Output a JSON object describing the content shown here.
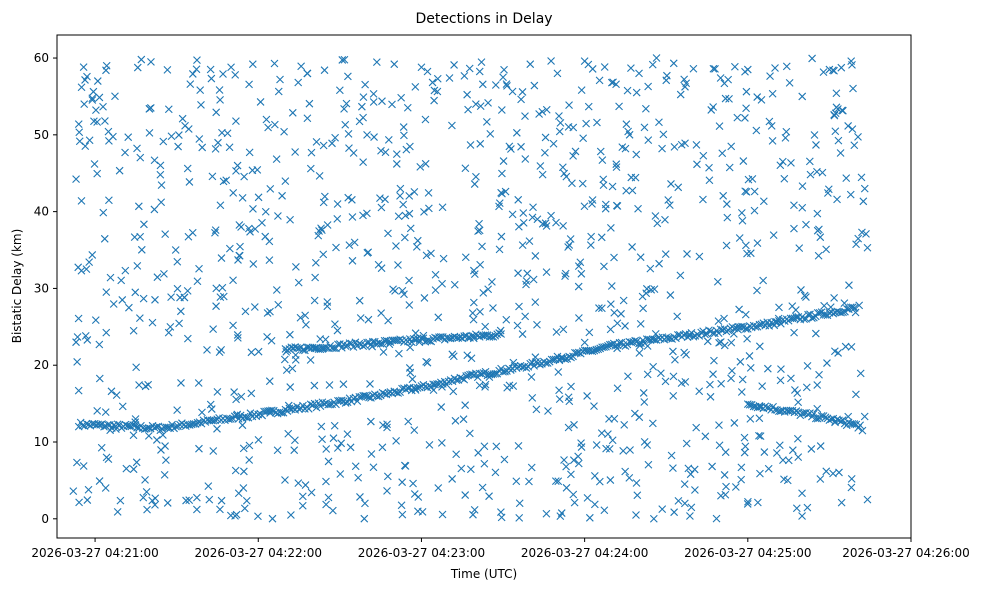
{
  "chart_data": {
    "type": "scatter",
    "title": "Detections in Delay",
    "xlabel": "Time (UTC)",
    "ylabel": "Bistatic Delay (km)",
    "marker": "x",
    "color": "#1f77b4",
    "xlim": [
      "2026-03-27 04:20:46",
      "2026-03-27 04:26:00"
    ],
    "ylim": [
      -2.5,
      63
    ],
    "xticks": [
      "2026-03-27 04:21:00",
      "2026-03-27 04:22:00",
      "2026-03-27 04:23:00",
      "2026-03-27 04:24:00",
      "2026-03-27 04:25:00",
      "2026-03-27 04:26:00"
    ],
    "yticks": [
      0,
      10,
      20,
      30,
      40,
      50,
      60
    ],
    "grid": false,
    "series": [
      {
        "name": "",
        "description_tracks": [
          {
            "x": [
              "2026-03-27 04:20:54",
              "2026-03-27 04:21:24",
              "2026-03-27 04:22:00",
              "2026-03-27 04:22:40",
              "2026-03-27 04:23:10"
            ],
            "y": [
              12.3,
              11.8,
              13.6,
              15.8,
              17.8
            ]
          },
          {
            "x": [
              "2026-03-27 04:23:10",
              "2026-03-27 04:23:40",
              "2026-03-27 04:24:10",
              "2026-03-27 04:24:40",
              "2026-03-27 04:25:10",
              "2026-03-27 04:25:40"
            ],
            "y": [
              18.0,
              20.0,
              22.5,
              24.0,
              25.5,
              27.5
            ]
          },
          {
            "x": [
              "2026-03-27 04:22:10",
              "2026-03-27 04:22:40",
              "2026-03-27 04:23:00",
              "2026-03-27 04:23:30"
            ],
            "y": [
              22.0,
              22.8,
              23.3,
              24.0
            ]
          },
          {
            "x": [
              "2026-03-27 04:25:00",
              "2026-03-27 04:25:30",
              "2026-03-27 04:25:42"
            ],
            "y": [
              15.0,
              13.0,
              12.0
            ]
          }
        ],
        "points": [
          [
            "2026-03-27 04:20:52",
            3.6
          ],
          [
            "2026-03-27 04:20:53",
            23.0
          ],
          [
            "2026-03-27 04:20:54",
            51.4
          ],
          [
            "2026-03-27 04:20:55",
            41.4
          ],
          [
            "2026-03-27 04:20:56",
            54.0
          ],
          [
            "2026-03-27 04:20:58",
            49.3
          ],
          [
            "2026-03-27 04:21:01",
            57.0
          ],
          [
            "2026-03-27 04:21:04",
            58.4
          ],
          [
            "2026-03-27 04:21:10",
            28.5
          ],
          [
            "2026-03-27 04:21:17",
            59.8
          ],
          [
            "2026-03-27 04:21:20",
            53.4
          ],
          [
            "2026-03-27 04:21:24",
            44.8
          ],
          [
            "2026-03-27 04:21:35",
            56.6
          ],
          [
            "2026-03-27 04:21:42",
            2.5
          ],
          [
            "2026-03-27 04:21:50",
            58.8
          ],
          [
            "2026-03-27 04:21:58",
            59.2
          ],
          [
            "2026-03-27 04:22:03",
            52.0
          ],
          [
            "2026-03-27 04:22:08",
            57.2
          ],
          [
            "2026-03-27 04:22:12",
            0.5
          ],
          [
            "2026-03-27 04:22:18",
            58.0
          ],
          [
            "2026-03-27 04:22:30",
            55.8
          ],
          [
            "2026-03-27 04:22:40",
            50.0
          ],
          [
            "2026-03-27 04:22:50",
            59.2
          ],
          [
            "2026-03-27 04:23:00",
            58.8
          ],
          [
            "2026-03-27 04:23:06",
            57.3
          ],
          [
            "2026-03-27 04:23:12",
            59.1
          ],
          [
            "2026-03-27 04:23:20",
            54.0
          ],
          [
            "2026-03-27 04:23:30",
            57.5
          ],
          [
            "2026-03-27 04:23:40",
            59.2
          ],
          [
            "2026-03-27 04:23:50",
            58.0
          ],
          [
            "2026-03-27 04:24:00",
            59.6
          ],
          [
            "2026-03-27 04:24:10",
            56.8
          ],
          [
            "2026-03-27 04:24:20",
            58.0
          ],
          [
            "2026-03-27 04:24:30",
            57.1
          ],
          [
            "2026-03-27 04:24:40",
            58.6
          ],
          [
            "2026-03-27 04:24:50",
            57.4
          ],
          [
            "2026-03-27 04:25:00",
            58.5
          ],
          [
            "2026-03-27 04:25:10",
            58.7
          ],
          [
            "2026-03-27 04:25:20",
            55.0
          ],
          [
            "2026-03-27 04:25:30",
            58.5
          ],
          [
            "2026-03-27 04:25:38",
            59.6
          ],
          [
            "2026-03-27 04:25:43",
            43.0
          ],
          [
            "2026-03-27 04:25:44",
            2.5
          ],
          [
            "2026-03-27 04:25:44",
            35.3
          ]
        ]
      }
    ]
  }
}
